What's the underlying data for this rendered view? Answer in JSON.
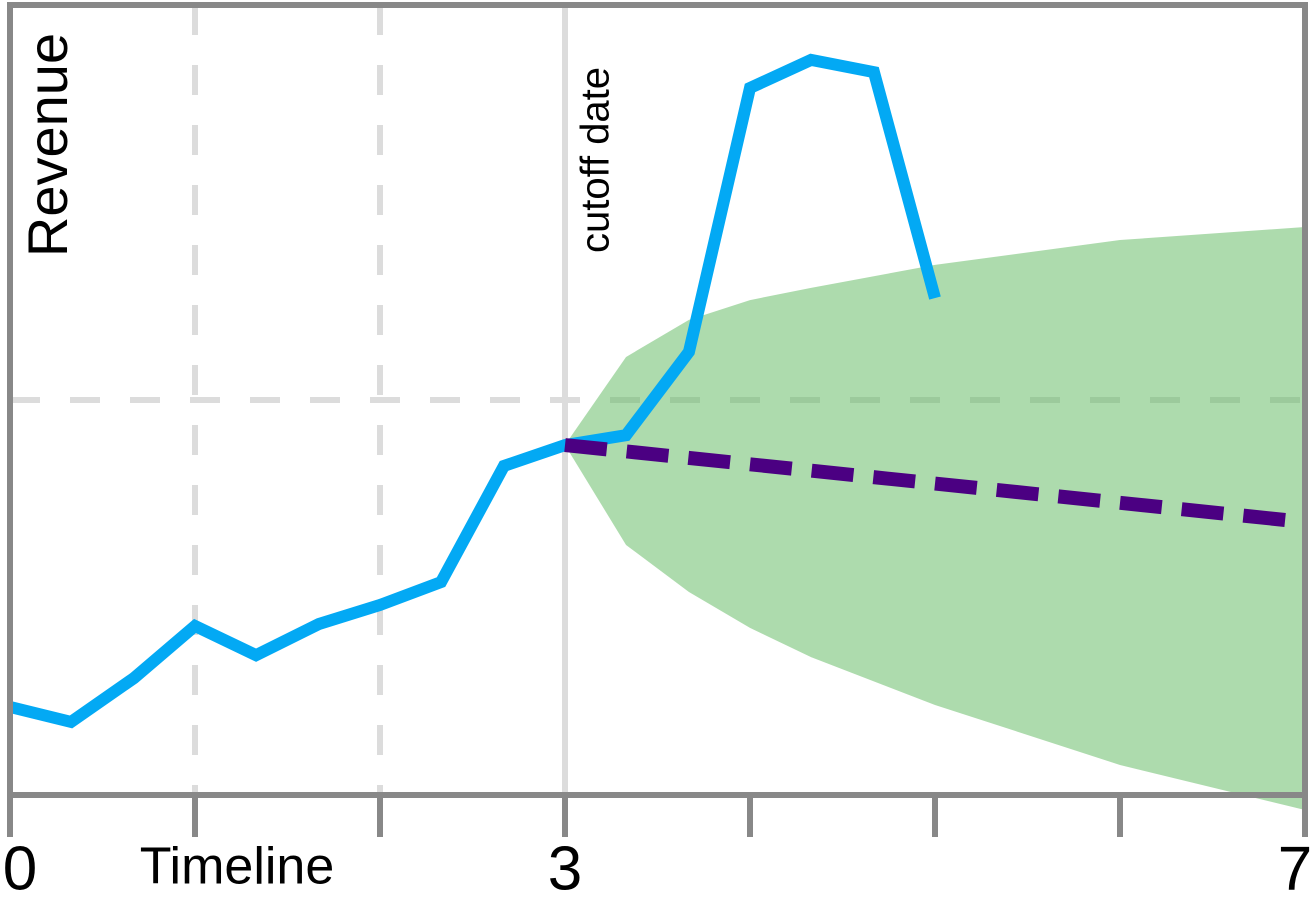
{
  "chart_data": {
    "type": "line",
    "x_label": "Timeline",
    "y_label": "Revenue",
    "annotation": "cutoff date",
    "cutoff_x": 3,
    "xlim": [
      0,
      7
    ],
    "ylim": [
      0,
      2
    ],
    "xticks": [
      0,
      {
        "value": 1,
        "label": null
      },
      {
        "value": 2,
        "label": null
      },
      3,
      {
        "value": 4,
        "label": null
      },
      {
        "value": 5,
        "label": null
      },
      {
        "value": 6,
        "label": null
      },
      7
    ],
    "grid_x": [
      1,
      2
    ],
    "grid_y": [
      1
    ],
    "series": [
      {
        "color": "#03a9f4",
        "dashed": false,
        "x": [
          0,
          0.33,
          0.67,
          1,
          1.33,
          1.67,
          2,
          2.33,
          2.67,
          3,
          3.33,
          3.67,
          4,
          4.33,
          4.67,
          5
        ],
        "values": [
          0.223,
          0.185,
          0.296,
          0.428,
          0.354,
          0.433,
          0.481,
          0.539,
          0.833,
          0.886,
          0.911,
          1.122,
          1.79,
          1.861,
          1.83,
          1.258
        ]
      },
      {
        "color": "#4b0082",
        "dashed": true,
        "x": [
          3,
          7
        ],
        "values": [
          0.886,
          0.691
        ]
      }
    ],
    "band": {
      "color": "#5cb85c",
      "x": [
        3,
        3.33,
        3.67,
        4,
        4.33,
        5,
        6,
        7
      ],
      "upper": [
        0.886,
        1.109,
        1.203,
        1.253,
        1.284,
        1.342,
        1.405,
        1.438
      ],
      "lower": [
        0.886,
        0.633,
        0.514,
        0.423,
        0.349,
        0.228,
        0.076,
        -0.038
      ]
    }
  }
}
